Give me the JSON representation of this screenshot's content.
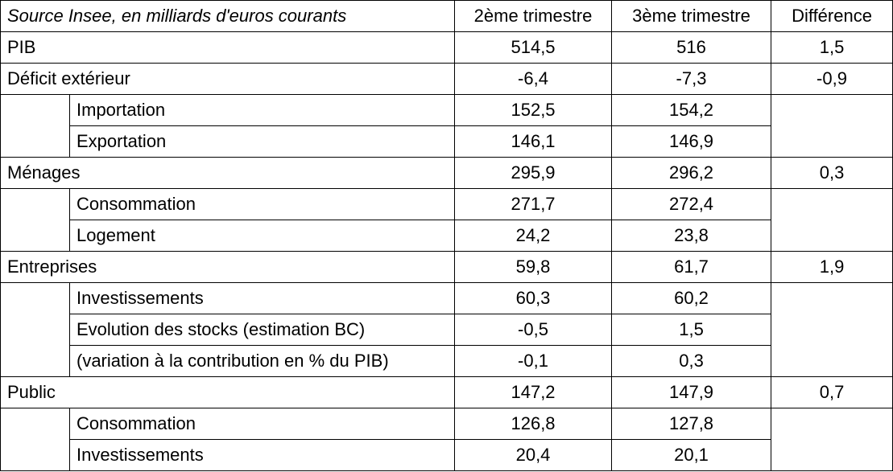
{
  "header": {
    "source": "Source Insee, en milliards d'euros courants",
    "col_q2": "2ème trimestre",
    "col_q3": "3ème trimestre",
    "col_diff": "Différence"
  },
  "rows": {
    "pib": {
      "label": "PIB",
      "q2": "514,5",
      "q3": "516",
      "diff": "1,5"
    },
    "deficit": {
      "label": "Déficit extérieur",
      "q2": "-6,4",
      "q3": "-7,3",
      "diff": "-0,9"
    },
    "importation": {
      "label": "Importation",
      "q2": "152,5",
      "q3": "154,2"
    },
    "exportation": {
      "label": "Exportation",
      "q2": "146,1",
      "q3": "146,9"
    },
    "menages": {
      "label": "Ménages",
      "q2": "295,9",
      "q3": "296,2",
      "diff": "0,3"
    },
    "consommation_menages": {
      "label": "Consommation",
      "q2": "271,7",
      "q3": "272,4"
    },
    "logement": {
      "label": "Logement",
      "q2": "24,2",
      "q3": "23,8"
    },
    "entreprises": {
      "label": "Entreprises",
      "q2": "59,8",
      "q3": "61,7",
      "diff": "1,9"
    },
    "investissements_entreprises": {
      "label": "Investissements",
      "q2": "60,3",
      "q3": "60,2"
    },
    "stocks": {
      "label": "Evolution des stocks (estimation BC)",
      "q2": "-0,5",
      "q3": "1,5"
    },
    "variation": {
      "label": "(variation à la contribution en % du PIB)",
      "q2": "-0,1",
      "q3": "0,3"
    },
    "public": {
      "label": "Public",
      "q2": "147,2",
      "q3": "147,9",
      "diff": "0,7"
    },
    "consommation_public": {
      "label": "Consommation",
      "q2": "126,8",
      "q3": "127,8"
    },
    "investissements_public": {
      "label": "Investissements",
      "q2": "20,4",
      "q3": "20,1"
    }
  }
}
